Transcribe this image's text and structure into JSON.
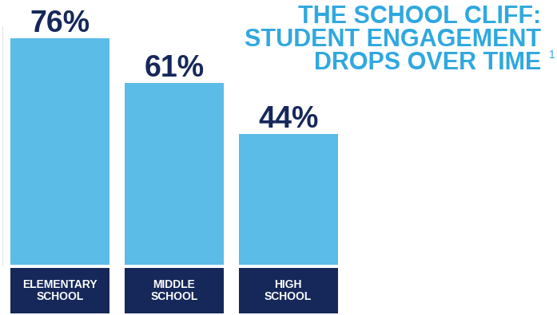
{
  "chart_data": {
    "type": "bar",
    "title": "THE SCHOOL CLIFF: STUDENT ENGAGEMENT DROPS OVER TIME",
    "annotations": [
      "1"
    ],
    "categories": [
      "ELEMENTARY SCHOOL",
      "MIDDLE SCHOOL",
      "HIGH SCHOOL"
    ],
    "values": [
      76,
      61,
      44
    ],
    "value_labels": [
      "76%",
      "61%",
      "44%"
    ],
    "color": "#5bbce8",
    "ylim": [
      0,
      80
    ],
    "data_labels": true,
    "tick_labels": false
  }
}
